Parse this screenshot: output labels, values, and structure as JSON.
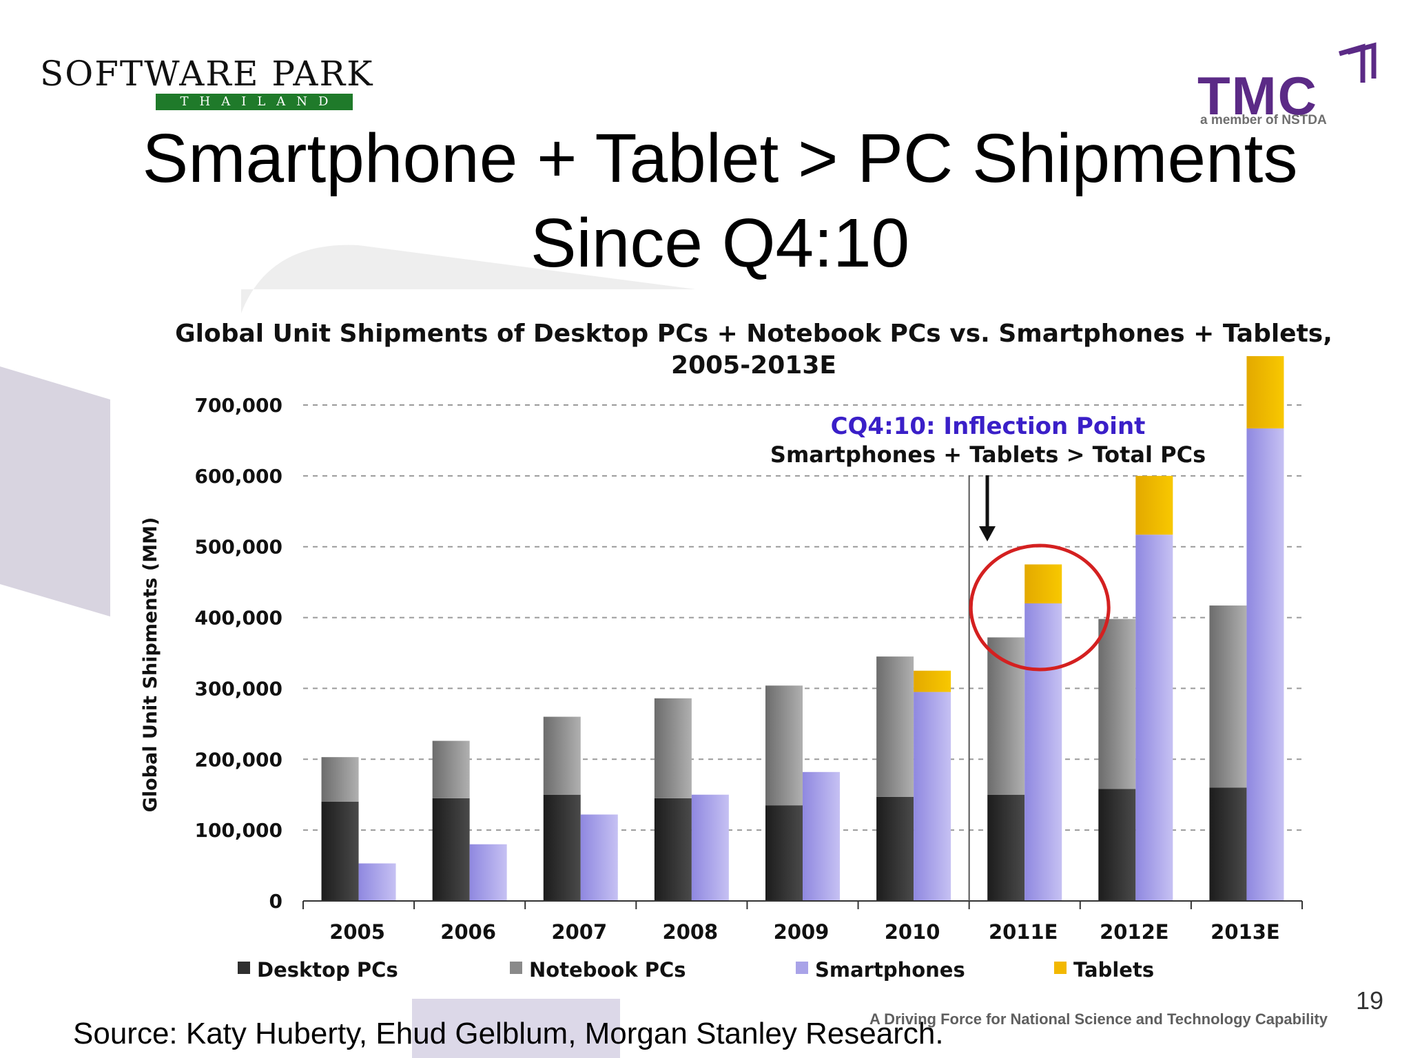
{
  "header": {
    "logo_left": {
      "wordmark": "SOFTWARE PARK",
      "sub": "THAILAND"
    },
    "logo_right": {
      "wordmark": "TMC",
      "tagline": "a member of NSTDA"
    }
  },
  "slide": {
    "title_line1": "Smartphone + Tablet > PC Shipments",
    "title_line2": "Since Q4:10"
  },
  "chart_data": {
    "type": "bar",
    "title_line1": "Global Unit Shipments of Desktop PCs + Notebook PCs vs. Smartphones + Tablets,",
    "title_line2": "2005-2013E",
    "ylabel": "Global Unit Shipments (MM)",
    "xlabel": "",
    "ylim": [
      0,
      700000
    ],
    "yticks": [
      0,
      100000,
      200000,
      300000,
      400000,
      500000,
      600000,
      700000
    ],
    "ytick_labels": [
      "0",
      "100,000",
      "200,000",
      "300,000",
      "400,000",
      "500,000",
      "600,000",
      "700,000"
    ],
    "grid": "horizontal dashed",
    "categories": [
      "2005",
      "2006",
      "2007",
      "2008",
      "2009",
      "2010",
      "2011E",
      "2012E",
      "2013E"
    ],
    "stacks": [
      {
        "stack": "PCs",
        "series": [
          {
            "name": "Desktop PCs",
            "color": "#2f2f2f",
            "values": [
              140000,
              145000,
              150000,
              145000,
              135000,
              147000,
              150000,
              158000,
              160000
            ]
          },
          {
            "name": "Notebook PCs",
            "color": "#8a8a8a",
            "values": [
              63000,
              81000,
              110000,
              141000,
              169000,
              198000,
              222000,
              240000,
              257000
            ]
          }
        ]
      },
      {
        "stack": "Smartphones + Tablets",
        "series": [
          {
            "name": "Smartphones",
            "color": "#a9a3e8",
            "values": [
              53000,
              80000,
              122000,
              150000,
              182000,
              295000,
              420000,
              517000,
              667000
            ]
          },
          {
            "name": "Tablets",
            "color": "#f2b800",
            "values": [
              0,
              0,
              0,
              0,
              0,
              30000,
              55000,
              83000,
              102000
            ]
          }
        ]
      }
    ],
    "legend": [
      "Desktop PCs",
      "Notebook PCs",
      "Smartphones",
      "Tablets"
    ],
    "legend_position": "bottom",
    "annotation": {
      "line1": "CQ4:10: Inflection Point",
      "line2": "Smartphones + Tablets > Total PCs",
      "line1_color": "#3a1fc8",
      "highlight_color": "#d42020",
      "highlight_category": "2011E"
    }
  },
  "footer": {
    "source": "Source:  Katy Huberty, Ehud Gelblum, Morgan Stanley Research.",
    "tagline": "A Driving Force for National Science and Technology Capability",
    "page_number": "19"
  }
}
